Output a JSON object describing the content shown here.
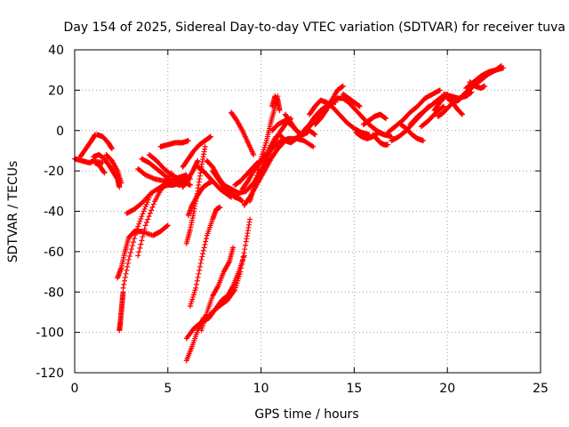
{
  "chart_data": {
    "type": "scatter",
    "title": "Day 154 of 2025, Sidereal Day-to-day VTEC variation (SDTVAR) for receiver tuva",
    "xlabel": "GPS time / hours",
    "ylabel": "SDTVAR / TECUs",
    "xlim": [
      0,
      25
    ],
    "ylim": [
      -120,
      40
    ],
    "xticks": [
      0,
      5,
      10,
      15,
      20,
      25
    ],
    "yticks": [
      -120,
      -100,
      -80,
      -60,
      -40,
      -20,
      0,
      20,
      40
    ],
    "grid": "dotted",
    "legend": "none",
    "marker": "+",
    "color": "#ff0000",
    "series": [
      {
        "x": [
          0.0,
          0.4,
          0.8,
          1.0,
          1.5
        ],
        "y": [
          -14,
          -15,
          -16,
          -15,
          -16
        ]
      },
      {
        "x": [
          0.3,
          0.6,
          0.9,
          1.1
        ],
        "y": [
          -13,
          -9,
          -5,
          -2
        ]
      },
      {
        "x": [
          1.0,
          1.3,
          1.6,
          1.9,
          2.1,
          2.3,
          2.4
        ],
        "y": [
          -13,
          -12,
          -14,
          -18,
          -21,
          -24,
          -28
        ]
      },
      {
        "x": [
          1.1,
          1.3,
          1.6
        ],
        "y": [
          -16,
          -17,
          -21
        ]
      },
      {
        "x": [
          1.2,
          1.5,
          1.8,
          2.0
        ],
        "y": [
          -2,
          -3,
          -6,
          -9
        ]
      },
      {
        "x": [
          1.7,
          2.0,
          2.3,
          2.5
        ],
        "y": [
          -12,
          -15,
          -20,
          -26
        ]
      },
      {
        "x": [
          2.4,
          2.45,
          2.5,
          2.55,
          2.6
        ],
        "y": [
          -99,
          -95,
          -90,
          -85,
          -80
        ]
      },
      {
        "x": [
          2.3,
          2.5,
          2.7,
          2.9,
          3.2,
          3.6,
          4.2,
          4.6,
          5.0
        ],
        "y": [
          -73,
          -68,
          -60,
          -53,
          -50,
          -50,
          -52,
          -50,
          -47
        ]
      },
      {
        "x": [
          2.6,
          2.9,
          3.3,
          3.7,
          4.1
        ],
        "y": [
          -78,
          -64,
          -50,
          -40,
          -31
        ]
      },
      {
        "x": [
          2.8,
          3.2,
          3.6,
          4.1,
          4.6,
          5.0,
          5.3,
          5.6,
          5.9
        ],
        "y": [
          -41,
          -39,
          -36,
          -31,
          -28,
          -27,
          -27,
          -26,
          -25
        ]
      },
      {
        "x": [
          3.4,
          3.8,
          4.3,
          4.7,
          5.2
        ],
        "y": [
          -62,
          -47,
          -35,
          -28,
          -21
        ]
      },
      {
        "x": [
          3.4,
          3.8,
          4.3,
          4.8,
          5.3,
          5.8
        ],
        "y": [
          -19,
          -22,
          -24,
          -25,
          -25,
          -26
        ]
      },
      {
        "x": [
          3.6,
          4.0,
          4.4,
          4.8,
          5.2
        ],
        "y": [
          -14,
          -16,
          -19,
          -22,
          -25
        ]
      },
      {
        "x": [
          4.0,
          4.4,
          4.8,
          5.2,
          5.6,
          6.0,
          6.2
        ],
        "y": [
          -12,
          -15,
          -19,
          -22,
          -24,
          -26,
          -27
        ]
      },
      {
        "x": [
          4.5,
          4.9,
          5.3,
          5.7,
          6.0
        ],
        "y": [
          -30,
          -27,
          -24,
          -23,
          -22
        ]
      },
      {
        "x": [
          4.6,
          5.0,
          5.4,
          5.8,
          6.1
        ],
        "y": [
          -8,
          -7,
          -6,
          -6,
          -5
        ]
      },
      {
        "x": [
          5.4,
          5.6,
          5.8,
          6.0,
          6.2
        ],
        "y": [
          -26,
          -27,
          -25,
          -23,
          -24
        ]
      },
      {
        "x": [
          5.8,
          6.1,
          6.4,
          6.6
        ],
        "y": [
          -28,
          -24,
          -19,
          -15
        ]
      },
      {
        "x": [
          6.0,
          6.2,
          6.4,
          6.6,
          6.8,
          7.0
        ],
        "y": [
          -56,
          -49,
          -40,
          -30,
          -18,
          -8
        ]
      },
      {
        "x": [
          5.8,
          6.1,
          6.4,
          6.7,
          7.0,
          7.3
        ],
        "y": [
          -18,
          -14,
          -10,
          -7,
          -5,
          -3
        ]
      },
      {
        "x": [
          6.1,
          6.3,
          6.6,
          6.9,
          7.2,
          7.4
        ],
        "y": [
          -42,
          -37,
          -32,
          -28,
          -26,
          -25
        ]
      },
      {
        "x": [
          6.0,
          6.3,
          6.6,
          6.9,
          7.2,
          7.5,
          7.9,
          8.2,
          8.6,
          8.9,
          9.2,
          9.4
        ],
        "y": [
          -114,
          -107,
          -99,
          -93,
          -92,
          -89,
          -86,
          -84,
          -79,
          -70,
          -55,
          -44
        ]
      },
      {
        "x": [
          6.0,
          6.4,
          6.8,
          7.2,
          7.6,
          7.9,
          8.2,
          8.5,
          8.8,
          9.1
        ],
        "y": [
          -103,
          -98,
          -95,
          -93,
          -88,
          -84,
          -82,
          -77,
          -70,
          -62
        ]
      },
      {
        "x": [
          6.2,
          6.5,
          6.8,
          7.1,
          7.4,
          7.6,
          7.8
        ],
        "y": [
          -87,
          -78,
          -64,
          -52,
          -44,
          -39,
          -38
        ]
      },
      {
        "x": [
          6.8,
          7.1,
          7.4,
          7.7,
          8.0,
          8.3,
          8.5
        ],
        "y": [
          -99,
          -90,
          -82,
          -77,
          -70,
          -65,
          -58
        ]
      },
      {
        "x": [
          6.6,
          6.9,
          7.2,
          7.5,
          7.8,
          8.1,
          8.4
        ],
        "y": [
          -18,
          -20,
          -23,
          -26,
          -29,
          -31,
          -33
        ]
      },
      {
        "x": [
          7.1,
          7.4,
          7.7,
          8.0,
          8.3,
          8.7,
          9.0
        ],
        "y": [
          -15,
          -18,
          -23,
          -27,
          -31,
          -33,
          -35
        ]
      },
      {
        "x": [
          7.4,
          7.7,
          8.0,
          8.3,
          8.6,
          8.9
        ],
        "y": [
          -20,
          -24,
          -28,
          -31,
          -33,
          -34
        ]
      },
      {
        "x": [
          8.0,
          8.4,
          8.8,
          9.2,
          9.6,
          10.0,
          10.4
        ],
        "y": [
          -27,
          -29,
          -31,
          -30,
          -26,
          -20,
          -14
        ]
      },
      {
        "x": [
          8.4,
          8.7,
          9.0,
          9.3,
          9.6
        ],
        "y": [
          9,
          5,
          0,
          -6,
          -12
        ]
      },
      {
        "x": [
          8.6,
          8.9,
          9.2,
          9.5,
          9.8
        ],
        "y": [
          -27,
          -25,
          -22,
          -19,
          -16
        ]
      },
      {
        "x": [
          9.0,
          9.3,
          9.6,
          9.9,
          10.2
        ],
        "y": [
          -29,
          -25,
          -20,
          -16,
          -12
        ]
      },
      {
        "x": [
          9.1,
          9.4,
          9.7,
          10.0,
          10.3,
          10.6,
          10.9,
          11.2
        ],
        "y": [
          -37,
          -33,
          -28,
          -23,
          -18,
          -13,
          -9,
          -6
        ]
      },
      {
        "x": [
          9.4,
          9.6,
          9.9,
          10.2,
          10.5,
          10.8
        ],
        "y": [
          -35,
          -29,
          -22,
          -14,
          -8,
          -3
        ]
      },
      {
        "x": [
          9.7,
          10.0,
          10.3,
          10.5,
          10.7,
          10.9
        ],
        "y": [
          -25,
          -14,
          -5,
          3,
          10,
          17
        ]
      },
      {
        "x": [
          10.1,
          10.4,
          10.7,
          11.0,
          11.3,
          11.6
        ],
        "y": [
          -18,
          -12,
          -6,
          -1,
          3,
          6
        ]
      },
      {
        "x": [
          10.2,
          10.5,
          10.8,
          11.1,
          11.5,
          11.9,
          12.3,
          12.8
        ],
        "y": [
          -14,
          -10,
          -7,
          -5,
          -4,
          -4,
          -5,
          -8
        ]
      },
      {
        "x": [
          10.6,
          10.75,
          10.9,
          11.0
        ],
        "y": [
          12,
          17,
          15,
          10
        ]
      },
      {
        "x": [
          10.6,
          10.9,
          11.3,
          11.6,
          11.9,
          12.2
        ],
        "y": [
          0,
          3,
          5,
          3,
          0,
          -3
        ]
      },
      {
        "x": [
          11.0,
          11.3,
          11.6,
          11.9,
          12.2,
          12.5
        ],
        "y": [
          -2,
          -5,
          -6,
          -4,
          -2,
          -1
        ]
      },
      {
        "x": [
          11.3,
          11.6,
          11.9,
          12.2
        ],
        "y": [
          8,
          4,
          0,
          -2
        ]
      },
      {
        "x": [
          11.7,
          12.0,
          12.3,
          12.6,
          12.9
        ],
        "y": [
          -5,
          -3,
          -1,
          0,
          -2
        ]
      },
      {
        "x": [
          12.0,
          12.3,
          12.6,
          12.9,
          13.2,
          13.5
        ],
        "y": [
          -4,
          -1,
          2,
          5,
          8,
          10
        ]
      },
      {
        "x": [
          12.3,
          12.6,
          12.9,
          13.2,
          13.5,
          13.8,
          14.0
        ],
        "y": [
          0,
          3,
          7,
          10,
          12,
          15,
          14
        ]
      },
      {
        "x": [
          12.6,
          12.9,
          13.2,
          13.5,
          13.8,
          14.2,
          14.6,
          15.0,
          15.4,
          15.8
        ],
        "y": [
          8,
          12,
          15,
          14,
          12,
          8,
          4,
          1,
          -1,
          -2
        ]
      },
      {
        "x": [
          12.9,
          13.2,
          13.5,
          13.8,
          14.1,
          14.4
        ],
        "y": [
          3,
          6,
          10,
          15,
          20,
          22
        ]
      },
      {
        "x": [
          13.8,
          14.1,
          14.4,
          14.7,
          15.0,
          15.4,
          15.8,
          16.2,
          16.6,
          17.0
        ],
        "y": [
          13,
          16,
          16,
          14,
          11,
          7,
          3,
          0,
          -2,
          -3
        ]
      },
      {
        "x": [
          14.4,
          14.7,
          15.0,
          15.3
        ],
        "y": [
          18,
          16,
          14,
          12
        ]
      },
      {
        "x": [
          15.1,
          15.4,
          15.7,
          16.0,
          16.3,
          16.6
        ],
        "y": [
          -1,
          -3,
          -4,
          -3,
          -1,
          -2
        ]
      },
      {
        "x": [
          15.5,
          15.8,
          16.1,
          16.4,
          16.7
        ],
        "y": [
          3,
          5,
          7,
          8,
          6
        ]
      },
      {
        "x": [
          16.0,
          16.2,
          16.4,
          16.6,
          16.8
        ],
        "y": [
          -2,
          -4,
          -6,
          -7,
          -7
        ]
      },
      {
        "x": [
          16.8,
          17.2,
          17.6,
          18.0,
          18.4,
          18.8,
          19.2,
          19.6
        ],
        "y": [
          -1,
          2,
          5,
          9,
          12,
          16,
          18,
          20
        ]
      },
      {
        "x": [
          17.0,
          17.4,
          17.8,
          18.2,
          18.6,
          19.0
        ],
        "y": [
          -5,
          -3,
          0,
          4,
          8,
          12
        ]
      },
      {
        "x": [
          17.5,
          17.8,
          18.1,
          18.4,
          18.7
        ],
        "y": [
          3,
          1,
          -2,
          -4,
          -5
        ]
      },
      {
        "x": [
          18.0,
          18.4,
          18.8,
          19.2,
          19.6,
          20.0
        ],
        "y": [
          3,
          7,
          10,
          13,
          16,
          18
        ]
      },
      {
        "x": [
          18.6,
          19.0,
          19.4,
          19.8
        ],
        "y": [
          2,
          5,
          9,
          12
        ]
      },
      {
        "x": [
          19.3,
          19.6,
          19.9,
          20.2,
          20.5,
          20.8
        ],
        "y": [
          10,
          14,
          17,
          15,
          11,
          8
        ]
      },
      {
        "x": [
          19.5,
          19.8,
          20.1,
          20.4
        ],
        "y": [
          7,
          9,
          12,
          15
        ]
      },
      {
        "x": [
          19.8,
          20.2,
          20.6,
          21.0,
          21.3
        ],
        "y": [
          18,
          17,
          16,
          17,
          19
        ]
      },
      {
        "x": [
          20.0,
          20.3,
          20.6,
          20.9
        ],
        "y": [
          16,
          14,
          15,
          18
        ]
      },
      {
        "x": [
          20.6,
          21.0,
          21.4,
          21.8,
          22.2,
          22.6,
          23.0
        ],
        "y": [
          15,
          19,
          22,
          25,
          28,
          30,
          31
        ]
      },
      {
        "x": [
          21.0,
          21.4,
          21.8,
          22.2,
          22.6,
          22.9
        ],
        "y": [
          21,
          24,
          27,
          29,
          30,
          32
        ]
      },
      {
        "x": [
          21.2,
          21.5,
          21.8,
          22.0
        ],
        "y": [
          24,
          22,
          21,
          22
        ]
      }
    ]
  }
}
